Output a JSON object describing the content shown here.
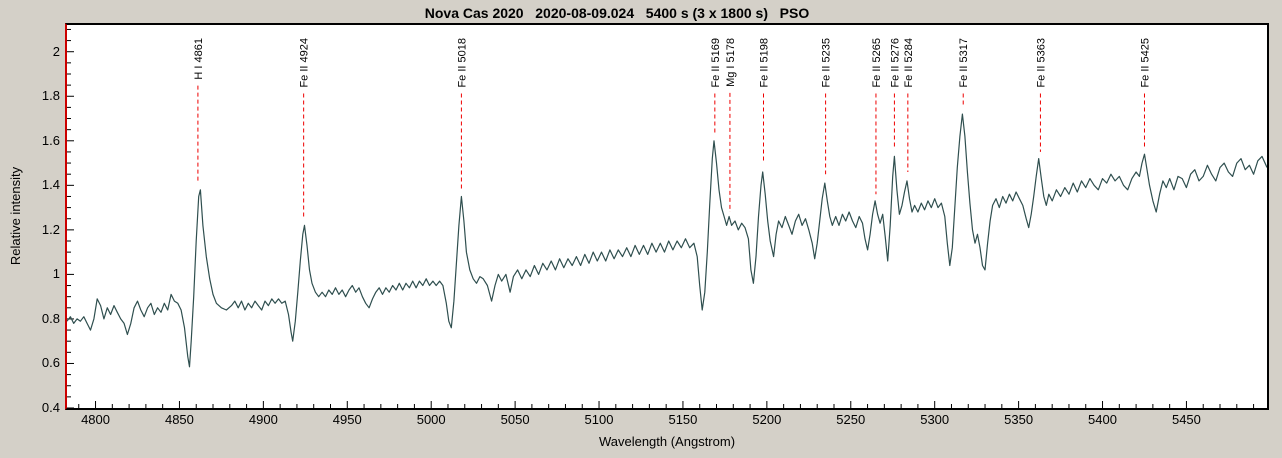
{
  "title": "Nova Cas 2020   2020-08-09.024   5400 s (3 x 1800 s)   PSO",
  "colors": {
    "background": "#d4d0c8",
    "plot_background": "#ffffff",
    "axis_frame": "#000000",
    "left_axis": "#cc0000",
    "spectrum_line": "#2f4f4f",
    "marker_dash": "#ee0000",
    "text": "#000000"
  },
  "chart_data": {
    "type": "line",
    "title": "Nova Cas 2020   2020-08-09.024   5400 s (3 x 1800 s)   PSO",
    "xlabel": "Wavelength (Angstrom)",
    "ylabel": "Relative intensity",
    "xlim": [
      4783,
      5498
    ],
    "ylim": [
      0.4,
      2.12
    ],
    "grid": false,
    "legend": "none",
    "x_major_step": 50,
    "x_minor_step": 10,
    "x_major_ticks": [
      4800,
      4850,
      4900,
      4950,
      5000,
      5050,
      5100,
      5150,
      5200,
      5250,
      5300,
      5350,
      5400,
      5450
    ],
    "y_major_ticks": [
      0.4,
      0.6,
      0.8,
      1,
      1.2,
      1.4,
      1.6,
      1.8,
      2
    ],
    "y_minor_step": 0.05,
    "line_markers": [
      {
        "label": "H I 4861",
        "wavelength": 4861,
        "dash_end_intensity": 1.42
      },
      {
        "label": "Fe II 4924",
        "wavelength": 4924,
        "dash_end_intensity": 1.26
      },
      {
        "label": "Fe II 5018",
        "wavelength": 5018,
        "dash_end_intensity": 1.38
      },
      {
        "label": "Fe II 5169",
        "wavelength": 5169,
        "dash_end_intensity": 1.63
      },
      {
        "label": "Mg I 5178",
        "wavelength": 5178,
        "dash_end_intensity": 1.28
      },
      {
        "label": "Fe II 5198",
        "wavelength": 5198,
        "dash_end_intensity": 1.5
      },
      {
        "label": "Fe II 5235",
        "wavelength": 5235,
        "dash_end_intensity": 1.45
      },
      {
        "label": "Fe II 5265",
        "wavelength": 5265,
        "dash_end_intensity": 1.36
      },
      {
        "label": "Fe II 5276",
        "wavelength": 5276,
        "dash_end_intensity": 1.57
      },
      {
        "label": "Fe II 5284",
        "wavelength": 5284,
        "dash_end_intensity": 1.46
      },
      {
        "label": "Fe II 5317",
        "wavelength": 5317,
        "dash_end_intensity": 1.75
      },
      {
        "label": "Fe II 5363",
        "wavelength": 5363,
        "dash_end_intensity": 1.55
      },
      {
        "label": "Fe II 5425",
        "wavelength": 5425,
        "dash_end_intensity": 1.57
      }
    ],
    "spectrum_points": [
      [
        4783,
        0.79
      ],
      [
        4785,
        0.81
      ],
      [
        4787,
        0.78
      ],
      [
        4789,
        0.8
      ],
      [
        4791,
        0.79
      ],
      [
        4793,
        0.81
      ],
      [
        4795,
        0.78
      ],
      [
        4797,
        0.75
      ],
      [
        4799,
        0.8
      ],
      [
        4801,
        0.89
      ],
      [
        4803,
        0.86
      ],
      [
        4805,
        0.8
      ],
      [
        4807,
        0.85
      ],
      [
        4809,
        0.82
      ],
      [
        4811,
        0.86
      ],
      [
        4813,
        0.83
      ],
      [
        4815,
        0.8
      ],
      [
        4817,
        0.78
      ],
      [
        4819,
        0.73
      ],
      [
        4821,
        0.78
      ],
      [
        4823,
        0.85
      ],
      [
        4825,
        0.88
      ],
      [
        4827,
        0.84
      ],
      [
        4829,
        0.81
      ],
      [
        4831,
        0.85
      ],
      [
        4833,
        0.87
      ],
      [
        4835,
        0.82
      ],
      [
        4837,
        0.85
      ],
      [
        4839,
        0.83
      ],
      [
        4841,
        0.87
      ],
      [
        4843,
        0.84
      ],
      [
        4845,
        0.91
      ],
      [
        4847,
        0.88
      ],
      [
        4849,
        0.87
      ],
      [
        4851,
        0.84
      ],
      [
        4853,
        0.76
      ],
      [
        4855,
        0.63
      ],
      [
        4856,
        0.585
      ],
      [
        4857,
        0.7
      ],
      [
        4858.5,
        0.9
      ],
      [
        4860,
        1.15
      ],
      [
        4861.5,
        1.35
      ],
      [
        4862.5,
        1.38
      ],
      [
        4864,
        1.22
      ],
      [
        4866,
        1.08
      ],
      [
        4868,
        0.98
      ],
      [
        4870,
        0.91
      ],
      [
        4872,
        0.87
      ],
      [
        4875,
        0.85
      ],
      [
        4878,
        0.84
      ],
      [
        4881,
        0.86
      ],
      [
        4883,
        0.88
      ],
      [
        4885,
        0.85
      ],
      [
        4887,
        0.88
      ],
      [
        4889,
        0.84
      ],
      [
        4891,
        0.87
      ],
      [
        4893,
        0.85
      ],
      [
        4895,
        0.88
      ],
      [
        4897,
        0.86
      ],
      [
        4899,
        0.84
      ],
      [
        4901,
        0.88
      ],
      [
        4903,
        0.86
      ],
      [
        4905,
        0.89
      ],
      [
        4907,
        0.87
      ],
      [
        4909,
        0.89
      ],
      [
        4911,
        0.87
      ],
      [
        4913,
        0.88
      ],
      [
        4915,
        0.82
      ],
      [
        4916.5,
        0.74
      ],
      [
        4917.5,
        0.7
      ],
      [
        4919,
        0.79
      ],
      [
        4920.5,
        0.92
      ],
      [
        4922,
        1.06
      ],
      [
        4923.5,
        1.18
      ],
      [
        4924.5,
        1.22
      ],
      [
        4926,
        1.13
      ],
      [
        4927.5,
        1.02
      ],
      [
        4929,
        0.96
      ],
      [
        4931,
        0.92
      ],
      [
        4933,
        0.9
      ],
      [
        4935,
        0.92
      ],
      [
        4937,
        0.9
      ],
      [
        4939,
        0.93
      ],
      [
        4941,
        0.91
      ],
      [
        4943,
        0.94
      ],
      [
        4945,
        0.91
      ],
      [
        4947,
        0.93
      ],
      [
        4949,
        0.9
      ],
      [
        4951,
        0.93
      ],
      [
        4953,
        0.95
      ],
      [
        4955,
        0.92
      ],
      [
        4957,
        0.94
      ],
      [
        4959,
        0.9
      ],
      [
        4961,
        0.87
      ],
      [
        4963,
        0.85
      ],
      [
        4965,
        0.89
      ],
      [
        4967,
        0.92
      ],
      [
        4969,
        0.94
      ],
      [
        4971,
        0.91
      ],
      [
        4973,
        0.94
      ],
      [
        4975,
        0.92
      ],
      [
        4977,
        0.95
      ],
      [
        4979,
        0.93
      ],
      [
        4981,
        0.96
      ],
      [
        4983,
        0.93
      ],
      [
        4985,
        0.96
      ],
      [
        4987,
        0.94
      ],
      [
        4989,
        0.97
      ],
      [
        4991,
        0.94
      ],
      [
        4993,
        0.97
      ],
      [
        4995,
        0.95
      ],
      [
        4997,
        0.98
      ],
      [
        4999,
        0.95
      ],
      [
        5001,
        0.97
      ],
      [
        5003,
        0.95
      ],
      [
        5005,
        0.97
      ],
      [
        5007,
        0.95
      ],
      [
        5009,
        0.87
      ],
      [
        5010.5,
        0.79
      ],
      [
        5012,
        0.76
      ],
      [
        5013.5,
        0.88
      ],
      [
        5015,
        1.05
      ],
      [
        5016.5,
        1.22
      ],
      [
        5018,
        1.35
      ],
      [
        5019.5,
        1.24
      ],
      [
        5021,
        1.1
      ],
      [
        5023,
        1.02
      ],
      [
        5025,
        0.98
      ],
      [
        5027,
        0.96
      ],
      [
        5029,
        0.99
      ],
      [
        5031,
        0.98
      ],
      [
        5033.5,
        0.95
      ],
      [
        5036,
        0.88
      ],
      [
        5038,
        0.95
      ],
      [
        5040,
        1.0
      ],
      [
        5042,
        0.97
      ],
      [
        5044.5,
        1.0
      ],
      [
        5047,
        0.92
      ],
      [
        5049,
        0.99
      ],
      [
        5051.5,
        1.02
      ],
      [
        5054,
        0.98
      ],
      [
        5056.5,
        1.02
      ],
      [
        5059,
        0.99
      ],
      [
        5061.5,
        1.04
      ],
      [
        5064,
        1.0
      ],
      [
        5066.5,
        1.05
      ],
      [
        5069,
        1.02
      ],
      [
        5071.5,
        1.06
      ],
      [
        5074,
        1.02
      ],
      [
        5076.5,
        1.07
      ],
      [
        5079,
        1.03
      ],
      [
        5081.5,
        1.07
      ],
      [
        5084,
        1.04
      ],
      [
        5086.5,
        1.08
      ],
      [
        5089,
        1.04
      ],
      [
        5091.5,
        1.09
      ],
      [
        5094,
        1.05
      ],
      [
        5096.5,
        1.1
      ],
      [
        5099,
        1.06
      ],
      [
        5101.5,
        1.1
      ],
      [
        5104,
        1.06
      ],
      [
        5106.5,
        1.11
      ],
      [
        5109,
        1.07
      ],
      [
        5111.5,
        1.11
      ],
      [
        5114,
        1.08
      ],
      [
        5116.5,
        1.12
      ],
      [
        5119,
        1.08
      ],
      [
        5121.5,
        1.13
      ],
      [
        5124,
        1.09
      ],
      [
        5126.5,
        1.13
      ],
      [
        5129,
        1.09
      ],
      [
        5131.5,
        1.14
      ],
      [
        5134,
        1.1
      ],
      [
        5136.5,
        1.14
      ],
      [
        5139,
        1.1
      ],
      [
        5141.5,
        1.15
      ],
      [
        5144,
        1.11
      ],
      [
        5146.5,
        1.15
      ],
      [
        5149,
        1.12
      ],
      [
        5151.5,
        1.16
      ],
      [
        5154,
        1.12
      ],
      [
        5156.5,
        1.14
      ],
      [
        5158.5,
        1.08
      ],
      [
        5160,
        0.95
      ],
      [
        5161.5,
        0.84
      ],
      [
        5163,
        0.92
      ],
      [
        5164.5,
        1.1
      ],
      [
        5166,
        1.32
      ],
      [
        5167.5,
        1.52
      ],
      [
        5168.5,
        1.6
      ],
      [
        5170,
        1.5
      ],
      [
        5171.5,
        1.38
      ],
      [
        5173,
        1.3
      ],
      [
        5174.5,
        1.26
      ],
      [
        5176,
        1.22
      ],
      [
        5177.5,
        1.26
      ],
      [
        5179,
        1.22
      ],
      [
        5181,
        1.24
      ],
      [
        5183,
        1.2
      ],
      [
        5185,
        1.23
      ],
      [
        5187,
        1.21
      ],
      [
        5189,
        1.16
      ],
      [
        5190.5,
        1.02
      ],
      [
        5192,
        0.96
      ],
      [
        5193.5,
        1.08
      ],
      [
        5195,
        1.26
      ],
      [
        5196.5,
        1.4
      ],
      [
        5197.5,
        1.46
      ],
      [
        5199,
        1.36
      ],
      [
        5200.5,
        1.24
      ],
      [
        5202,
        1.15
      ],
      [
        5204,
        1.08
      ],
      [
        5205.5,
        1.18
      ],
      [
        5207,
        1.24
      ],
      [
        5209,
        1.21
      ],
      [
        5211,
        1.26
      ],
      [
        5213,
        1.22
      ],
      [
        5215,
        1.18
      ],
      [
        5217,
        1.24
      ],
      [
        5219,
        1.27
      ],
      [
        5221,
        1.22
      ],
      [
        5223,
        1.25
      ],
      [
        5225,
        1.2
      ],
      [
        5227,
        1.14
      ],
      [
        5228.5,
        1.07
      ],
      [
        5230,
        1.14
      ],
      [
        5231.5,
        1.24
      ],
      [
        5233,
        1.34
      ],
      [
        5234.5,
        1.41
      ],
      [
        5236,
        1.33
      ],
      [
        5237.5,
        1.26
      ],
      [
        5239,
        1.22
      ],
      [
        5241,
        1.26
      ],
      [
        5243,
        1.22
      ],
      [
        5245,
        1.27
      ],
      [
        5247,
        1.24
      ],
      [
        5249,
        1.28
      ],
      [
        5251,
        1.24
      ],
      [
        5253,
        1.21
      ],
      [
        5255,
        1.26
      ],
      [
        5257,
        1.23
      ],
      [
        5258.5,
        1.16
      ],
      [
        5260,
        1.11
      ],
      [
        5261.5,
        1.18
      ],
      [
        5263,
        1.27
      ],
      [
        5264.5,
        1.33
      ],
      [
        5266,
        1.27
      ],
      [
        5267.5,
        1.23
      ],
      [
        5269,
        1.27
      ],
      [
        5270.5,
        1.17
      ],
      [
        5272,
        1.06
      ],
      [
        5273.5,
        1.22
      ],
      [
        5275,
        1.44
      ],
      [
        5276,
        1.53
      ],
      [
        5277.5,
        1.38
      ],
      [
        5279,
        1.27
      ],
      [
        5280.5,
        1.31
      ],
      [
        5282,
        1.37
      ],
      [
        5283.5,
        1.42
      ],
      [
        5285,
        1.34
      ],
      [
        5286.5,
        1.28
      ],
      [
        5288,
        1.31
      ],
      [
        5290,
        1.28
      ],
      [
        5292,
        1.32
      ],
      [
        5294,
        1.29
      ],
      [
        5296,
        1.33
      ],
      [
        5298,
        1.3
      ],
      [
        5300,
        1.34
      ],
      [
        5302,
        1.3
      ],
      [
        5304,
        1.32
      ],
      [
        5306,
        1.26
      ],
      [
        5307.5,
        1.14
      ],
      [
        5309,
        1.04
      ],
      [
        5310.5,
        1.12
      ],
      [
        5312,
        1.3
      ],
      [
        5313.5,
        1.48
      ],
      [
        5315,
        1.62
      ],
      [
        5316.5,
        1.72
      ],
      [
        5318,
        1.62
      ],
      [
        5319.5,
        1.46
      ],
      [
        5321,
        1.32
      ],
      [
        5322.5,
        1.2
      ],
      [
        5324,
        1.14
      ],
      [
        5325.5,
        1.18
      ],
      [
        5327,
        1.12
      ],
      [
        5328.5,
        1.04
      ],
      [
        5330,
        1.02
      ],
      [
        5331.5,
        1.14
      ],
      [
        5333,
        1.24
      ],
      [
        5334.5,
        1.31
      ],
      [
        5336.5,
        1.34
      ],
      [
        5338.5,
        1.3
      ],
      [
        5340.5,
        1.35
      ],
      [
        5342.5,
        1.32
      ],
      [
        5344.5,
        1.36
      ],
      [
        5346.5,
        1.33
      ],
      [
        5348.5,
        1.37
      ],
      [
        5350.5,
        1.34
      ],
      [
        5352.5,
        1.31
      ],
      [
        5354.5,
        1.25
      ],
      [
        5356,
        1.21
      ],
      [
        5357.5,
        1.27
      ],
      [
        5359,
        1.35
      ],
      [
        5360.5,
        1.44
      ],
      [
        5362,
        1.52
      ],
      [
        5363.5,
        1.43
      ],
      [
        5365,
        1.35
      ],
      [
        5366.5,
        1.31
      ],
      [
        5368,
        1.36
      ],
      [
        5370,
        1.33
      ],
      [
        5372.5,
        1.38
      ],
      [
        5375,
        1.35
      ],
      [
        5377.5,
        1.39
      ],
      [
        5380,
        1.36
      ],
      [
        5382.5,
        1.41
      ],
      [
        5385,
        1.37
      ],
      [
        5387.5,
        1.42
      ],
      [
        5390,
        1.39
      ],
      [
        5392.5,
        1.43
      ],
      [
        5395,
        1.4
      ],
      [
        5397.5,
        1.38
      ],
      [
        5400,
        1.43
      ],
      [
        5402.5,
        1.41
      ],
      [
        5405,
        1.45
      ],
      [
        5407.5,
        1.42
      ],
      [
        5410,
        1.44
      ],
      [
        5412.5,
        1.4
      ],
      [
        5415,
        1.38
      ],
      [
        5417.5,
        1.43
      ],
      [
        5420,
        1.46
      ],
      [
        5422,
        1.44
      ],
      [
        5423.5,
        1.5
      ],
      [
        5425,
        1.54
      ],
      [
        5426.5,
        1.47
      ],
      [
        5428,
        1.4
      ],
      [
        5430,
        1.33
      ],
      [
        5432,
        1.28
      ],
      [
        5434,
        1.36
      ],
      [
        5436,
        1.42
      ],
      [
        5438,
        1.39
      ],
      [
        5440,
        1.43
      ],
      [
        5442.5,
        1.38
      ],
      [
        5445,
        1.44
      ],
      [
        5447.5,
        1.43
      ],
      [
        5450,
        1.39
      ],
      [
        5452.5,
        1.45
      ],
      [
        5455,
        1.47
      ],
      [
        5457.5,
        1.42
      ],
      [
        5460,
        1.44
      ],
      [
        5462.5,
        1.49
      ],
      [
        5465,
        1.45
      ],
      [
        5467.5,
        1.42
      ],
      [
        5470,
        1.48
      ],
      [
        5472.5,
        1.5
      ],
      [
        5475,
        1.46
      ],
      [
        5477.5,
        1.44
      ],
      [
        5480,
        1.5
      ],
      [
        5482.5,
        1.52
      ],
      [
        5485,
        1.47
      ],
      [
        5487.5,
        1.49
      ],
      [
        5490,
        1.45
      ],
      [
        5492.5,
        1.51
      ],
      [
        5495,
        1.53
      ],
      [
        5498,
        1.48
      ]
    ]
  }
}
